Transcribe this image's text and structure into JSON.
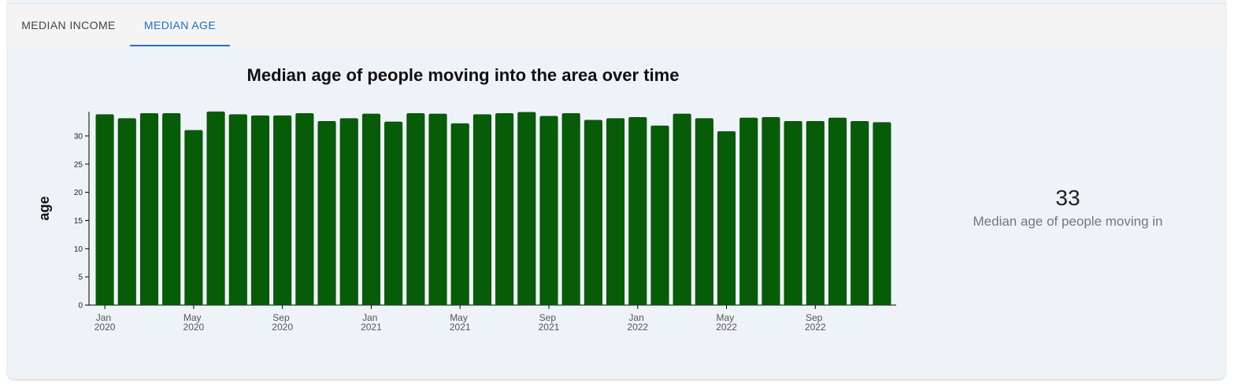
{
  "tabs": [
    "MEDIAN INCOME",
    "MEDIAN AGE"
  ],
  "chart_data": {
    "type": "bar",
    "title": "Median age of people moving into the area over time",
    "y_label": "age",
    "categories": [
      "Jan 2020",
      null,
      null,
      null,
      "May 2020",
      null,
      null,
      null,
      "Sep 2020",
      null,
      null,
      null,
      "Jan 2021",
      null,
      null,
      null,
      "May 2021",
      null,
      null,
      null,
      "Sep 2021",
      null,
      null,
      null,
      "Jan 2022",
      null,
      null,
      null,
      "May 2022",
      null,
      null,
      null,
      "Sep 2022",
      null,
      null,
      null
    ],
    "values": [
      33.8,
      33.1,
      34.0,
      34.0,
      31.0,
      34.3,
      33.8,
      33.6,
      33.6,
      34.0,
      32.6,
      33.1,
      33.9,
      32.5,
      34.0,
      33.9,
      32.2,
      33.8,
      34.0,
      34.2,
      33.5,
      34.0,
      32.8,
      33.1,
      33.3,
      31.8,
      33.9,
      33.1,
      30.8,
      33.2,
      33.3,
      32.6,
      32.6,
      33.2,
      32.6,
      32.4
    ],
    "color": "#075c07",
    "ylim": [
      0,
      34.3
    ],
    "yticks": [
      0,
      5,
      10,
      15,
      20,
      25,
      30
    ]
  },
  "stat": {
    "value": "33",
    "label": "Median age of people moving in"
  }
}
